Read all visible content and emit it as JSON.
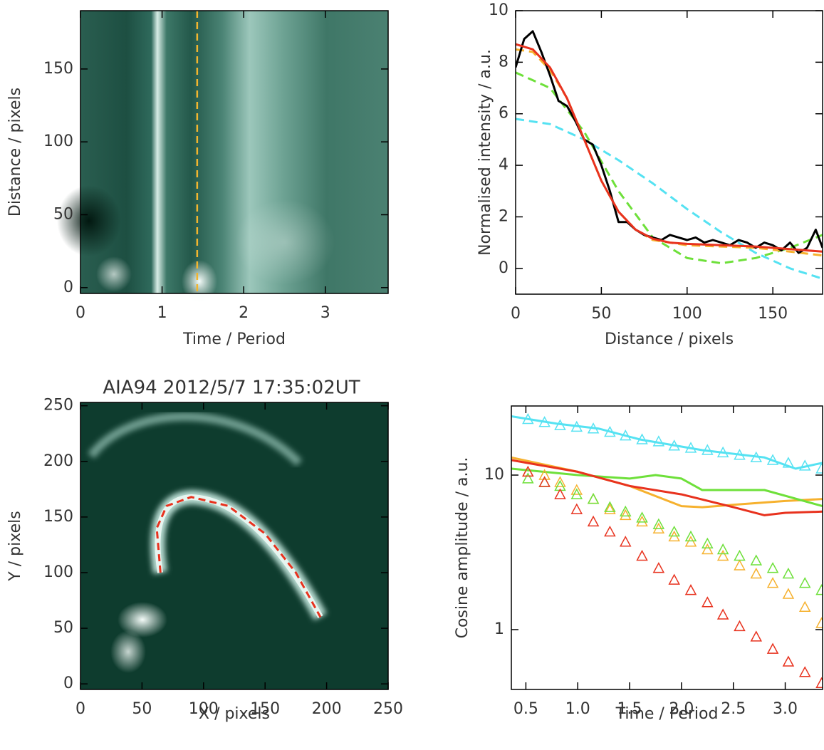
{
  "chart_data": [
    {
      "type": "image",
      "xlabel": "Time / Period",
      "ylabel": "Distance / pixels",
      "xlim": [
        0,
        3.77
      ],
      "ylim": [
        -4,
        190
      ],
      "xticks": [
        0,
        1,
        2,
        3
      ],
      "yticks": [
        0,
        50,
        100,
        150
      ],
      "vline": {
        "x": 1.43,
        "color": "#f2b52e"
      }
    },
    {
      "type": "line",
      "xlabel": "Distance / pixels",
      "ylabel": "Normalised intensity / a.u.",
      "xlim": [
        0,
        179
      ],
      "ylim": [
        -1,
        10
      ],
      "xticks": [
        0,
        50,
        100,
        150
      ],
      "yticks": [
        0,
        2,
        4,
        6,
        8,
        10
      ],
      "series": [
        {
          "color": "#55e2f2",
          "dash": true,
          "x": [
            0,
            20,
            40,
            60,
            80,
            100,
            120,
            140,
            160,
            179
          ],
          "values": [
            5.8,
            5.6,
            5.0,
            4.2,
            3.3,
            2.3,
            1.4,
            0.6,
            0.0,
            -0.4
          ]
        },
        {
          "color": "#6ee03a",
          "dash": true,
          "x": [
            0,
            20,
            40,
            60,
            80,
            100,
            120,
            140,
            160,
            179
          ],
          "values": [
            7.6,
            7.0,
            5.3,
            3.0,
            1.2,
            0.4,
            0.2,
            0.4,
            0.8,
            1.3
          ]
        },
        {
          "color": "#f6b12e",
          "dash": true,
          "x": [
            0,
            10,
            20,
            30,
            40,
            50,
            60,
            70,
            80,
            100,
            120,
            140,
            160,
            179
          ],
          "values": [
            8.5,
            8.4,
            7.7,
            6.6,
            5.0,
            3.4,
            2.2,
            1.5,
            1.1,
            0.9,
            0.85,
            0.8,
            0.65,
            0.5
          ]
        },
        {
          "color": "#000000",
          "dash": false,
          "x": [
            0,
            5,
            10,
            15,
            20,
            25,
            30,
            35,
            40,
            45,
            50,
            55,
            60,
            65,
            70,
            75,
            80,
            85,
            90,
            95,
            100,
            105,
            110,
            115,
            120,
            125,
            130,
            135,
            140,
            145,
            150,
            155,
            160,
            165,
            170,
            175,
            179
          ],
          "values": [
            7.8,
            8.9,
            9.2,
            8.4,
            7.5,
            6.5,
            6.3,
            5.7,
            5.0,
            4.8,
            4.0,
            3.0,
            1.8,
            1.8,
            1.5,
            1.3,
            1.2,
            1.1,
            1.3,
            1.2,
            1.1,
            1.2,
            1.0,
            1.1,
            1.0,
            0.9,
            1.1,
            1.0,
            0.8,
            1.0,
            0.9,
            0.7,
            1.0,
            0.6,
            0.8,
            1.5,
            0.8
          ]
        },
        {
          "color": "#e8321e",
          "dash": false,
          "x": [
            0,
            10,
            20,
            30,
            40,
            50,
            60,
            70,
            80,
            90,
            100,
            120,
            140,
            160,
            179
          ],
          "values": [
            8.7,
            8.5,
            7.8,
            6.6,
            5.0,
            3.4,
            2.2,
            1.5,
            1.15,
            1.0,
            0.95,
            0.9,
            0.85,
            0.75,
            0.65
          ]
        }
      ]
    },
    {
      "type": "image",
      "title": "AIA94 2012/5/7 17:35:02UT",
      "xlabel": "X / pixels",
      "ylabel": "Y / pixels",
      "xlim": [
        0,
        250
      ],
      "ylim": [
        -5,
        253
      ],
      "xticks": [
        0,
        50,
        100,
        150,
        200,
        250
      ],
      "yticks": [
        0,
        50,
        100,
        150,
        200,
        250
      ],
      "loop": {
        "color": "#e8321e",
        "x": [
          65,
          62,
          70,
          90,
          120,
          150,
          175,
          195
        ],
        "y": [
          100,
          140,
          160,
          168,
          160,
          135,
          100,
          60
        ]
      }
    },
    {
      "type": "line",
      "xlabel": "Time / Period",
      "ylabel": "Cosine amplitude / a.u.",
      "ylog": true,
      "xlim": [
        0.36,
        3.36
      ],
      "ylim": [
        0.41,
        28
      ],
      "xticks": [
        0.5,
        {
          "value": 1,
          "label": "1.0"
        },
        1.5,
        {
          "value": 2,
          "label": "2.0"
        },
        2.5,
        {
          "value": 3,
          "label": "3.0"
        }
      ],
      "yticks": [
        1,
        10
      ],
      "series": [
        {
          "color": "#55e2f2",
          "style": "line",
          "x": [
            0.36,
            0.8,
            1.2,
            1.6,
            2.2,
            2.8,
            3.1,
            3.36
          ],
          "values": [
            24,
            21.5,
            20,
            17,
            14.5,
            13,
            11,
            12
          ]
        },
        {
          "color": "#f6b12e",
          "style": "line",
          "x": [
            0.36,
            1.0,
            1.5,
            2.0,
            2.2,
            2.6,
            3.0,
            3.36
          ],
          "values": [
            13,
            10.5,
            8.5,
            6.3,
            6.2,
            6.5,
            6.8,
            7.0
          ]
        },
        {
          "color": "#6ee03a",
          "style": "line",
          "x": [
            0.36,
            1.0,
            1.5,
            1.75,
            2.0,
            2.2,
            2.8,
            3.36
          ],
          "values": [
            11,
            10,
            9.5,
            10,
            9.5,
            8,
            8,
            6.3
          ]
        },
        {
          "color": "#e8321e",
          "style": "line",
          "x": [
            0.36,
            1.0,
            1.5,
            2.0,
            2.5,
            2.8,
            3.0,
            3.36
          ],
          "values": [
            12.5,
            10.5,
            8.5,
            7.5,
            6.2,
            5.5,
            5.7,
            5.8
          ]
        },
        {
          "color": "#55e2f2",
          "style": "triangle",
          "x": [
            0.52,
            0.68,
            0.83,
            0.99,
            1.15,
            1.31,
            1.46,
            1.62,
            1.78,
            1.93,
            2.09,
            2.25,
            2.4,
            2.56,
            2.72,
            2.88,
            3.03,
            3.19,
            3.35
          ],
          "values": [
            23,
            22,
            21,
            20.5,
            20,
            19,
            18,
            17,
            16.5,
            15.5,
            15,
            14.5,
            14,
            13.5,
            13,
            12.5,
            12,
            11.5,
            11
          ]
        },
        {
          "color": "#f6b12e",
          "style": "triangle",
          "x": [
            0.52,
            0.68,
            0.83,
            0.99,
            1.15,
            1.31,
            1.46,
            1.62,
            1.78,
            1.93,
            2.09,
            2.25,
            2.4,
            2.56,
            2.72,
            2.88,
            3.03,
            3.19,
            3.35
          ],
          "values": [
            10.5,
            10,
            9,
            8,
            7,
            6,
            5.5,
            5,
            4.5,
            4,
            3.7,
            3.3,
            3.0,
            2.6,
            2.3,
            2.0,
            1.7,
            1.4,
            1.1
          ]
        },
        {
          "color": "#6ee03a",
          "style": "triangle",
          "x": [
            0.52,
            0.68,
            0.83,
            0.99,
            1.15,
            1.31,
            1.46,
            1.62,
            1.78,
            1.93,
            2.09,
            2.25,
            2.4,
            2.56,
            2.72,
            2.88,
            3.03,
            3.19,
            3.35
          ],
          "values": [
            9.5,
            9,
            8.5,
            7.5,
            7,
            6.2,
            5.8,
            5.3,
            4.8,
            4.3,
            4.0,
            3.6,
            3.3,
            3.0,
            2.8,
            2.5,
            2.3,
            2.0,
            1.8
          ]
        },
        {
          "color": "#e8321e",
          "style": "triangle",
          "x": [
            0.52,
            0.68,
            0.83,
            0.99,
            1.15,
            1.31,
            1.46,
            1.62,
            1.78,
            1.93,
            2.09,
            2.25,
            2.4,
            2.56,
            2.72,
            2.88,
            3.03,
            3.19,
            3.35
          ],
          "values": [
            10.5,
            9,
            7.5,
            6,
            5,
            4.3,
            3.7,
            3.0,
            2.5,
            2.1,
            1.8,
            1.5,
            1.25,
            1.05,
            0.9,
            0.75,
            0.62,
            0.53,
            0.45
          ]
        }
      ]
    }
  ]
}
